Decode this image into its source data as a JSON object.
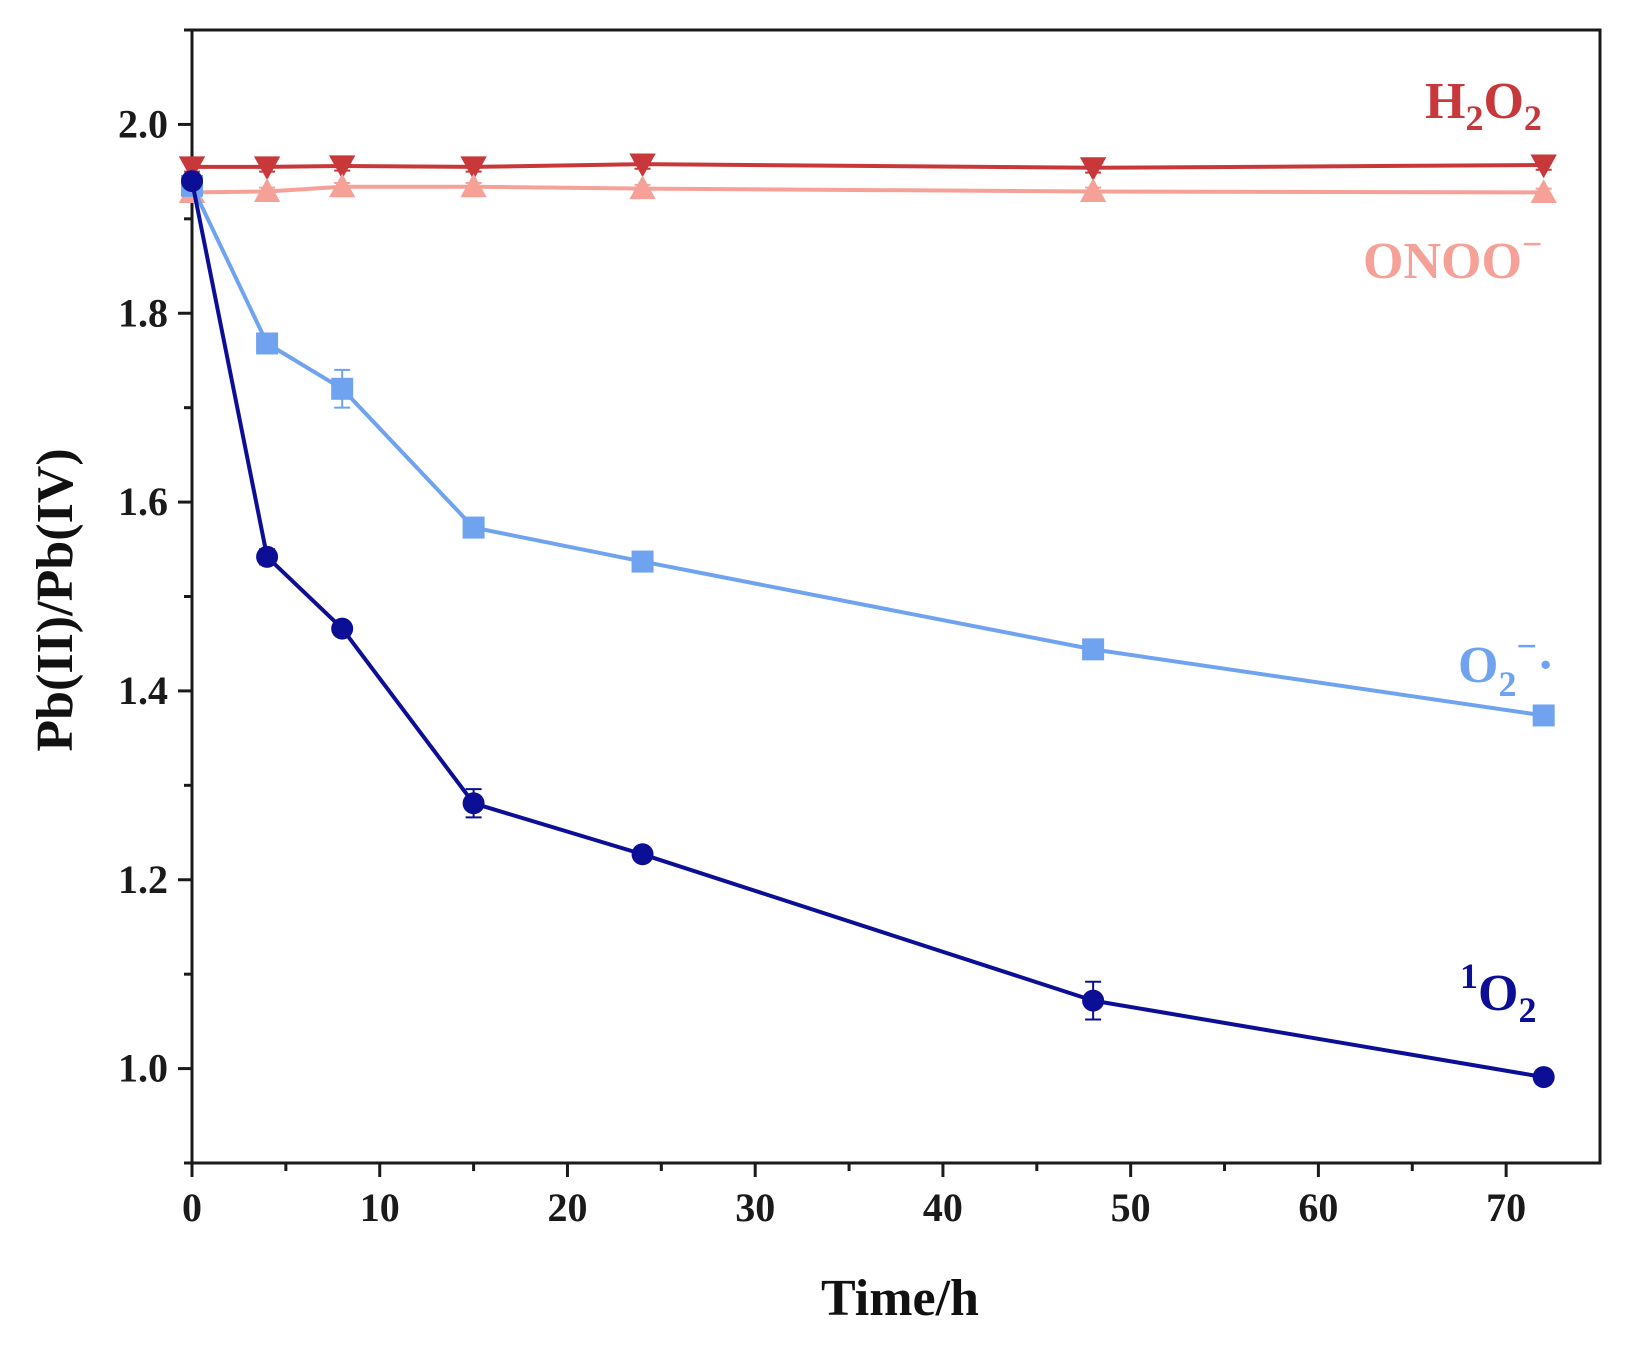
{
  "chart_data": {
    "type": "line",
    "title": "",
    "xlabel": "Time/h",
    "ylabel": "Pb(II)/Pb(IV)",
    "xlim": [
      0,
      75
    ],
    "ylim": [
      0.9,
      2.1
    ],
    "x_ticks": [
      0,
      10,
      20,
      30,
      40,
      50,
      60,
      70
    ],
    "x_tick_labels": [
      "0",
      "10",
      "20",
      "30",
      "40",
      "50",
      "60",
      "70"
    ],
    "y_ticks": [
      1.0,
      1.2,
      1.4,
      1.6,
      1.8,
      2.0
    ],
    "y_tick_labels": [
      "1.0",
      "1.2",
      "1.4",
      "1.6",
      "1.8",
      "2.0"
    ],
    "x": [
      0,
      4,
      8,
      15,
      24,
      48,
      72
    ],
    "series": [
      {
        "name": "H2O2",
        "label_main": "H",
        "label_sub1": "2",
        "label_mid": "O",
        "label_sub2": "2",
        "color": "#c8383a",
        "marker": "triangle-down",
        "values": [
          1.955,
          1.955,
          1.956,
          1.955,
          1.958,
          1.954,
          1.957
        ],
        "errors": [
          0.005,
          0.005,
          0.005,
          0.005,
          0.005,
          0.005,
          0.005
        ]
      },
      {
        "name": "ONOO−",
        "label_main": "ONOO",
        "label_sup": "−",
        "color": "#f5a197",
        "marker": "triangle-up",
        "values": [
          1.928,
          1.929,
          1.934,
          1.934,
          1.932,
          1.929,
          1.928
        ],
        "errors": [
          0.004,
          0.004,
          0.004,
          0.004,
          0.004,
          0.004,
          0.004
        ]
      },
      {
        "name": "O2−·",
        "label_main": "O",
        "label_sub": "2",
        "label_sup": "−",
        "label_dot": "·",
        "color": "#6fa3ef",
        "marker": "square",
        "values": [
          1.935,
          1.768,
          1.72,
          1.573,
          1.537,
          1.444,
          1.374
        ],
        "errors": [
          0.005,
          0.008,
          0.02,
          0.008,
          0.006,
          0.007,
          0.005
        ]
      },
      {
        "name": "1O2",
        "label_sup": "1",
        "label_main": "O",
        "label_sub": "2",
        "color": "#0c0f96",
        "marker": "circle",
        "values": [
          1.94,
          1.542,
          1.466,
          1.281,
          1.227,
          1.072,
          0.991
        ],
        "errors": [
          0.005,
          0.008,
          0.006,
          0.015,
          0.006,
          0.02,
          0.005
        ]
      }
    ]
  }
}
